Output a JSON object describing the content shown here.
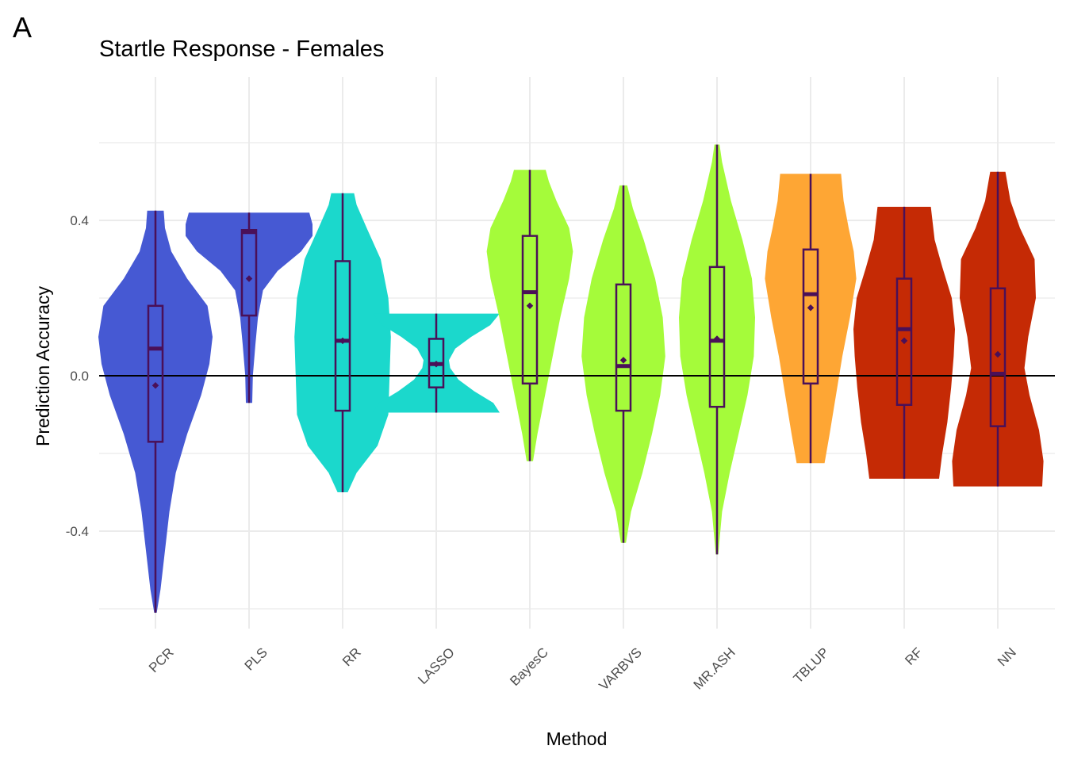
{
  "figure": {
    "panel_label": "A"
  },
  "chart_data": {
    "type": "violin",
    "title": "Startle Response - Females",
    "xlabel": "Method",
    "ylabel": "Prediction Accuracy",
    "ylim": [
      -0.68,
      0.76
    ],
    "yticks": [
      -0.4,
      0.0,
      0.4
    ],
    "ytick_labels": [
      "-0.4",
      "0.0",
      "0.4"
    ],
    "grid": true,
    "reference_line": 0.0,
    "categories": [
      "PCR",
      "PLS",
      "RR",
      "LASSO",
      "BayesC",
      "VARBVS",
      "MR.ASH",
      "TBLUP",
      "RF",
      "NN"
    ],
    "colors": [
      "#4659d3",
      "#4659d3",
      "#1bd8cc",
      "#1bd8cc",
      "#a5fb3a",
      "#a5fb3a",
      "#a5fb3a",
      "#fea634",
      "#c52a05",
      "#c52a05"
    ],
    "box_color": "#4a1058",
    "series": [
      {
        "min": -0.61,
        "q1": -0.17,
        "median": 0.07,
        "q3": 0.18,
        "max": 0.425,
        "mean": -0.025,
        "density": [
          [
            -0.61,
            0.02
          ],
          [
            -0.55,
            0.08
          ],
          [
            -0.45,
            0.15
          ],
          [
            -0.35,
            0.22
          ],
          [
            -0.25,
            0.32
          ],
          [
            -0.15,
            0.5
          ],
          [
            -0.05,
            0.72
          ],
          [
            0.03,
            0.85
          ],
          [
            0.1,
            0.9
          ],
          [
            0.18,
            0.82
          ],
          [
            0.25,
            0.5
          ],
          [
            0.32,
            0.25
          ],
          [
            0.38,
            0.15
          ],
          [
            0.425,
            0.13
          ]
        ]
      },
      {
        "min": -0.07,
        "q1": 0.155,
        "median": 0.37,
        "q3": 0.375,
        "max": 0.42,
        "mean": 0.25,
        "density": [
          [
            -0.07,
            0.05
          ],
          [
            0.0,
            0.06
          ],
          [
            0.08,
            0.1
          ],
          [
            0.15,
            0.14
          ],
          [
            0.22,
            0.22
          ],
          [
            0.27,
            0.45
          ],
          [
            0.32,
            0.82
          ],
          [
            0.36,
            1.0
          ],
          [
            0.39,
            1.0
          ],
          [
            0.42,
            0.95
          ]
        ]
      },
      {
        "min": -0.3,
        "q1": -0.09,
        "median": 0.09,
        "q3": 0.295,
        "max": 0.47,
        "mean": 0.09,
        "density": [
          [
            -0.3,
            0.08
          ],
          [
            -0.25,
            0.22
          ],
          [
            -0.18,
            0.55
          ],
          [
            -0.1,
            0.72
          ],
          [
            0.0,
            0.74
          ],
          [
            0.1,
            0.76
          ],
          [
            0.2,
            0.72
          ],
          [
            0.3,
            0.6
          ],
          [
            0.38,
            0.38
          ],
          [
            0.44,
            0.22
          ],
          [
            0.47,
            0.18
          ]
        ]
      },
      {
        "min": -0.095,
        "q1": -0.03,
        "median": 0.03,
        "q3": 0.095,
        "max": 0.16,
        "mean": 0.03,
        "density": [
          [
            -0.095,
            1.0
          ],
          [
            -0.07,
            0.9
          ],
          [
            -0.04,
            0.6
          ],
          [
            -0.01,
            0.35
          ],
          [
            0.02,
            0.22
          ],
          [
            0.04,
            0.2
          ],
          [
            0.07,
            0.3
          ],
          [
            0.1,
            0.55
          ],
          [
            0.13,
            0.85
          ],
          [
            0.16,
            1.0
          ]
        ]
      },
      {
        "min": -0.22,
        "q1": -0.02,
        "median": 0.215,
        "q3": 0.36,
        "max": 0.53,
        "mean": 0.18,
        "density": [
          [
            -0.22,
            0.05
          ],
          [
            -0.15,
            0.12
          ],
          [
            -0.05,
            0.24
          ],
          [
            0.05,
            0.36
          ],
          [
            0.15,
            0.48
          ],
          [
            0.25,
            0.62
          ],
          [
            0.32,
            0.68
          ],
          [
            0.38,
            0.62
          ],
          [
            0.45,
            0.42
          ],
          [
            0.5,
            0.3
          ],
          [
            0.53,
            0.25
          ]
        ]
      },
      {
        "min": -0.43,
        "q1": -0.09,
        "median": 0.025,
        "q3": 0.235,
        "max": 0.49,
        "mean": 0.04,
        "density": [
          [
            -0.43,
            0.04
          ],
          [
            -0.35,
            0.12
          ],
          [
            -0.25,
            0.3
          ],
          [
            -0.15,
            0.45
          ],
          [
            -0.05,
            0.58
          ],
          [
            0.05,
            0.66
          ],
          [
            0.15,
            0.62
          ],
          [
            0.25,
            0.5
          ],
          [
            0.35,
            0.32
          ],
          [
            0.43,
            0.15
          ],
          [
            0.49,
            0.06
          ]
        ]
      },
      {
        "min": -0.46,
        "q1": -0.08,
        "median": 0.09,
        "q3": 0.28,
        "max": 0.595,
        "mean": 0.095,
        "density": [
          [
            -0.46,
            0.02
          ],
          [
            -0.35,
            0.08
          ],
          [
            -0.25,
            0.2
          ],
          [
            -0.15,
            0.34
          ],
          [
            -0.05,
            0.48
          ],
          [
            0.05,
            0.58
          ],
          [
            0.15,
            0.6
          ],
          [
            0.25,
            0.55
          ],
          [
            0.35,
            0.4
          ],
          [
            0.45,
            0.22
          ],
          [
            0.55,
            0.08
          ],
          [
            0.595,
            0.04
          ]
        ]
      },
      {
        "min": -0.225,
        "q1": -0.02,
        "median": 0.21,
        "q3": 0.325,
        "max": 0.52,
        "mean": 0.175,
        "density": [
          [
            -0.225,
            0.22
          ],
          [
            -0.15,
            0.3
          ],
          [
            -0.05,
            0.4
          ],
          [
            0.05,
            0.5
          ],
          [
            0.15,
            0.62
          ],
          [
            0.25,
            0.72
          ],
          [
            0.32,
            0.68
          ],
          [
            0.38,
            0.6
          ],
          [
            0.45,
            0.52
          ],
          [
            0.52,
            0.48
          ]
        ]
      },
      {
        "min": -0.265,
        "q1": -0.075,
        "median": 0.12,
        "q3": 0.25,
        "max": 0.435,
        "mean": 0.09,
        "density": [
          [
            -0.265,
            0.55
          ],
          [
            -0.2,
            0.6
          ],
          [
            -0.12,
            0.68
          ],
          [
            -0.03,
            0.74
          ],
          [
            0.05,
            0.78
          ],
          [
            0.12,
            0.8
          ],
          [
            0.2,
            0.75
          ],
          [
            0.28,
            0.6
          ],
          [
            0.35,
            0.48
          ],
          [
            0.435,
            0.42
          ]
        ]
      },
      {
        "min": -0.285,
        "q1": -0.13,
        "median": 0.005,
        "q3": 0.225,
        "max": 0.525,
        "mean": 0.055,
        "density": [
          [
            -0.285,
            0.7
          ],
          [
            -0.22,
            0.72
          ],
          [
            -0.14,
            0.65
          ],
          [
            -0.05,
            0.5
          ],
          [
            0.02,
            0.42
          ],
          [
            0.1,
            0.48
          ],
          [
            0.2,
            0.6
          ],
          [
            0.3,
            0.58
          ],
          [
            0.38,
            0.35
          ],
          [
            0.45,
            0.2
          ],
          [
            0.525,
            0.12
          ]
        ]
      }
    ]
  }
}
